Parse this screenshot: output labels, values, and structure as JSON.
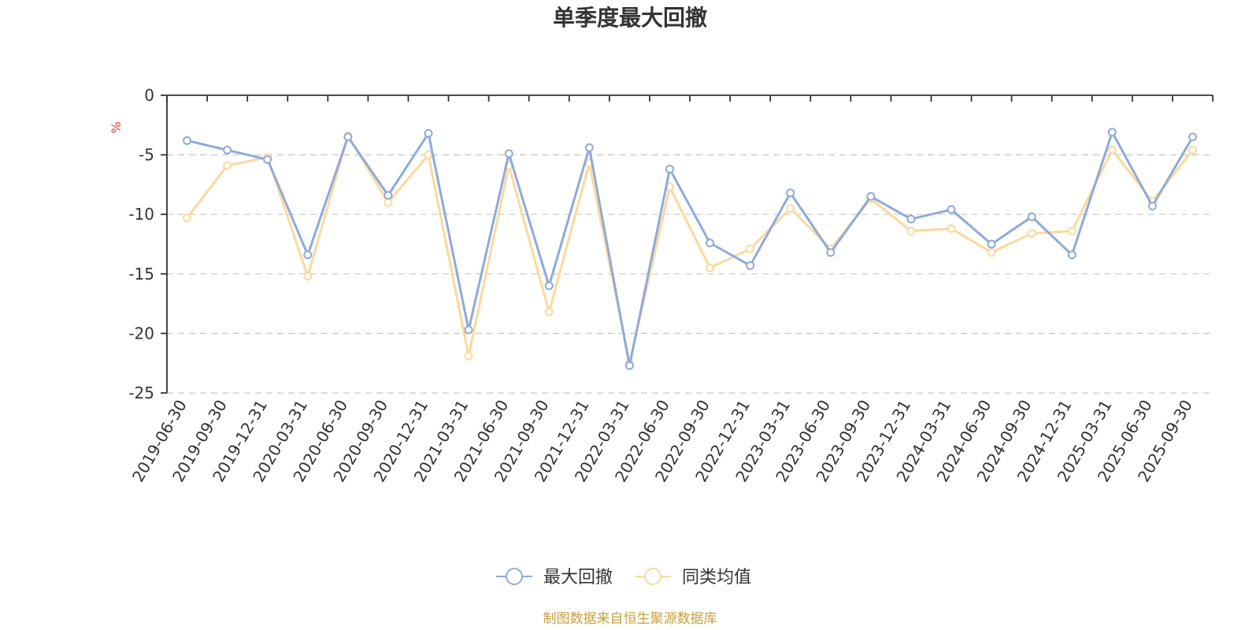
{
  "chart_data": {
    "type": "line",
    "title": "单季度最大回撤",
    "ylabel": "%",
    "xlabel": "",
    "ylim": [
      -25,
      0
    ],
    "yticks": [
      0,
      -5,
      -10,
      -15,
      -20,
      -25
    ],
    "grid": true,
    "legend_position": "bottom",
    "categories": [
      "2019-06-30",
      "2019-09-30",
      "2019-12-31",
      "2020-03-31",
      "2020-06-30",
      "2020-09-30",
      "2020-12-31",
      "2021-03-31",
      "2021-06-30",
      "2021-09-30",
      "2021-12-31",
      "2022-03-31",
      "2022-06-30",
      "2022-09-30",
      "2022-12-31",
      "2023-03-31",
      "2023-06-30",
      "2023-09-30",
      "2023-12-31",
      "2024-03-31",
      "2024-06-30",
      "2024-09-30",
      "2024-12-31",
      "2025-03-31",
      "2025-06-30",
      "2025-09-30"
    ],
    "series": [
      {
        "name": "最大回撤",
        "color": "#8eaadb",
        "values": [
          -3.8,
          -4.6,
          -5.4,
          -13.4,
          -3.5,
          -8.4,
          -3.2,
          -19.7,
          -4.9,
          -16.0,
          -4.4,
          -22.7,
          -6.2,
          -12.4,
          -14.3,
          -8.2,
          -13.2,
          -8.5,
          -10.4,
          -9.6,
          -12.5,
          -10.2,
          -13.4,
          -3.1,
          -9.3,
          -3.5
        ]
      },
      {
        "name": "同类均值",
        "color": "#fbd99c",
        "values": [
          -10.3,
          -5.9,
          -5.2,
          -15.2,
          -3.4,
          -9.0,
          -5.0,
          -21.9,
          -5.9,
          -18.2,
          -5.7,
          -22.5,
          -7.7,
          -14.5,
          -12.9,
          -9.5,
          -12.9,
          -8.7,
          -11.4,
          -11.2,
          -13.2,
          -11.6,
          -11.4,
          -4.6,
          -8.9,
          -4.6
        ]
      }
    ]
  },
  "footer": {
    "source": "制图数据来自恒生聚源数据库"
  }
}
